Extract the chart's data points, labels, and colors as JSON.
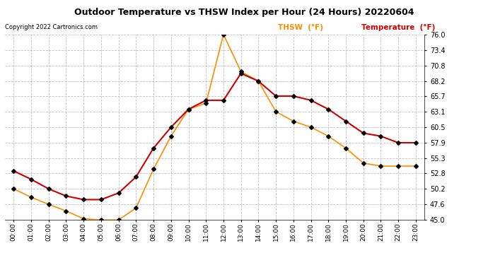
{
  "title": "Outdoor Temperature vs THSW Index per Hour (24 Hours) 20220604",
  "copyright": "Copyright 2022 Cartronics.com",
  "legend_thsw": "THSW  (°F)",
  "legend_temp": "Temperature  (°F)",
  "hours": [
    "00:00",
    "01:00",
    "02:00",
    "03:00",
    "04:00",
    "05:00",
    "06:00",
    "07:00",
    "08:00",
    "09:00",
    "10:00",
    "11:00",
    "12:00",
    "13:00",
    "14:00",
    "15:00",
    "16:00",
    "17:00",
    "18:00",
    "19:00",
    "20:00",
    "21:00",
    "22:00",
    "23:00"
  ],
  "temperature": [
    53.2,
    51.8,
    50.2,
    49.0,
    48.4,
    48.4,
    49.5,
    52.2,
    57.0,
    60.5,
    63.5,
    65.0,
    65.0,
    69.5,
    68.2,
    65.7,
    65.7,
    65.0,
    63.5,
    61.5,
    59.5,
    59.0,
    57.9,
    57.9
  ],
  "thsw": [
    50.2,
    48.8,
    47.6,
    46.5,
    45.2,
    45.0,
    45.0,
    47.0,
    53.5,
    59.0,
    63.5,
    64.5,
    76.0,
    69.8,
    68.2,
    63.1,
    61.5,
    60.5,
    59.0,
    57.0,
    54.5,
    54.0,
    54.0,
    54.0
  ],
  "ylim": [
    45.0,
    76.0
  ],
  "yticks": [
    45.0,
    47.6,
    50.2,
    52.8,
    55.3,
    57.9,
    60.5,
    63.1,
    65.7,
    68.2,
    70.8,
    73.4,
    76.0
  ],
  "color_temp": "#cc0000",
  "color_thsw": "#ff8c00",
  "color_marker": "#000000",
  "background": "#ffffff",
  "grid_color": "#c0c0c0",
  "title_color": "#000000",
  "copyright_color": "#000000",
  "legend_thsw_color": "#ff8c00",
  "legend_temp_color": "#cc0000"
}
